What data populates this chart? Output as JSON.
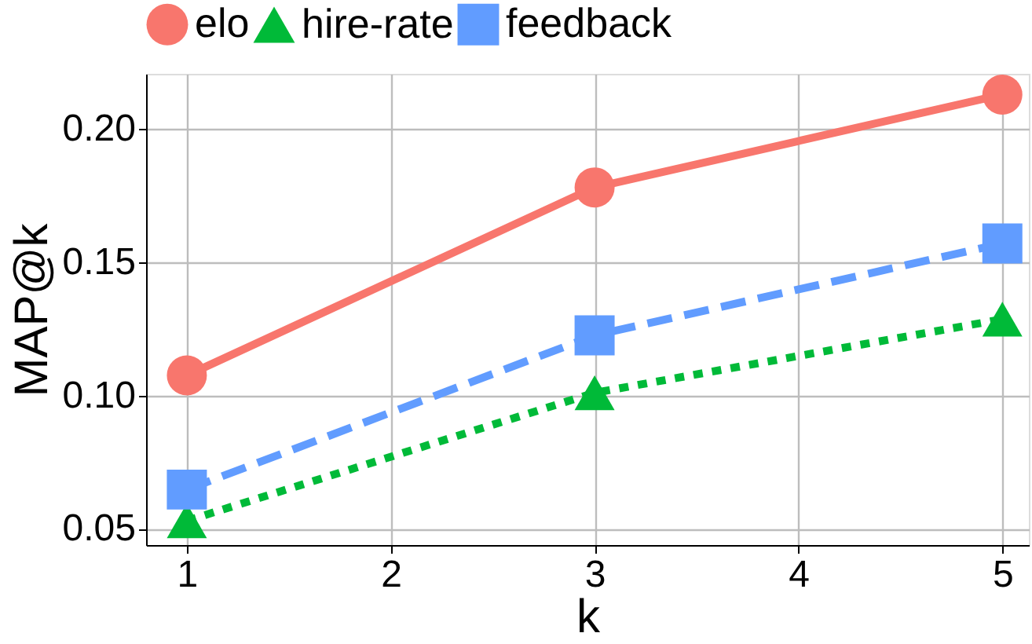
{
  "chart_data": {
    "type": "line",
    "xlabel": "k",
    "ylabel": "MAP@k",
    "x": [
      1,
      3,
      5
    ],
    "series": [
      {
        "name": "elo",
        "color": "#f8766d",
        "marker": "circle",
        "line_style": "solid",
        "values": [
          0.1075,
          0.178,
          0.2128
        ]
      },
      {
        "name": "hire-rate",
        "color": "#00ba38",
        "marker": "triangle",
        "line_style": "dotted",
        "values": [
          0.053,
          0.101,
          0.1286
        ]
      },
      {
        "name": "feedback",
        "color": "#619cff",
        "marker": "square",
        "line_style": "dashed",
        "values": [
          0.0647,
          0.1225,
          0.157
        ]
      }
    ],
    "xlim": [
      0.8,
      5.13
    ],
    "xticks": [
      1,
      2,
      3,
      4,
      5
    ],
    "ylim": [
      0.0439,
      0.2206
    ],
    "yticks": [
      0.05,
      {
        "value": 0.1,
        "label": "0.10"
      },
      0.15,
      {
        "value": 0.2,
        "label": "0.20"
      }
    ],
    "grid": true,
    "legend": "top"
  }
}
